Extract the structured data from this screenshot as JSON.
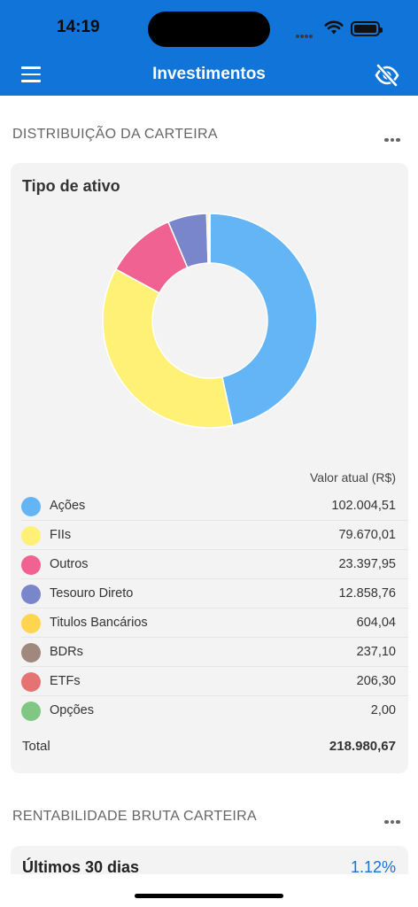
{
  "status_bar": {
    "time": "14:19"
  },
  "header": {
    "title": "Investimentos"
  },
  "distribution": {
    "section_title": "DISTRIBUIÇÃO DA CARTEIRA",
    "card_title": "Tipo de ativo",
    "column_header": "Valor atual (R$)",
    "items": [
      {
        "label": "Ações",
        "value": "102.004,51",
        "amount": 102004.51,
        "color": "#64b5f6"
      },
      {
        "label": "FIIs",
        "value": "79.670,01",
        "amount": 79670.01,
        "color": "#fff176"
      },
      {
        "label": "Outros",
        "value": "23.397,95",
        "amount": 23397.95,
        "color": "#f06292"
      },
      {
        "label": "Tesouro Direto",
        "value": "12.858,76",
        "amount": 12858.76,
        "color": "#7986cb"
      },
      {
        "label": "Titulos Bancários",
        "value": "604,04",
        "amount": 604.04,
        "color": "#ffd54f"
      },
      {
        "label": "BDRs",
        "value": "237,10",
        "amount": 237.1,
        "color": "#a1887f"
      },
      {
        "label": "ETFs",
        "value": "206,30",
        "amount": 206.3,
        "color": "#e57373"
      },
      {
        "label": "Opções",
        "value": "2,00",
        "amount": 2.0,
        "color": "#81c784"
      }
    ],
    "total_label": "Total",
    "total_value": "218.980,67"
  },
  "chart_data": {
    "type": "pie",
    "categories": [
      "Ações",
      "FIIs",
      "Outros",
      "Tesouro Direto",
      "Titulos Bancários",
      "BDRs",
      "ETFs",
      "Opções"
    ],
    "values": [
      102004.51,
      79670.01,
      23397.95,
      12858.76,
      604.04,
      237.1,
      206.3,
      2.0
    ],
    "title": "Tipo de ativo"
  },
  "rentabilidade": {
    "section_title": "RENTABILIDADE BRUTA CARTEIRA",
    "period_label": "Últimos 30 dias",
    "period_value": "1.12%"
  }
}
